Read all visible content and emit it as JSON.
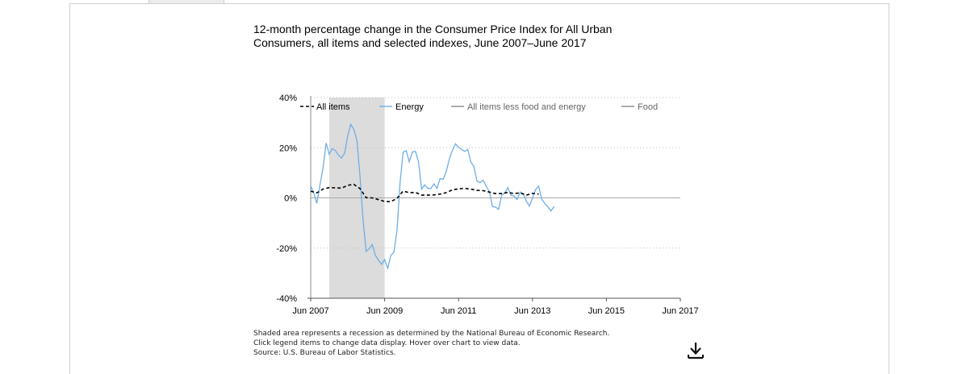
{
  "title": "12-month percentage change in the Consumer Price Index for All Urban Consumers, all items and selected indexes, June 2007–June 2017",
  "notes": {
    "recession": "Shaded area represents a recession as determined by the National Bureau of Economic Research.",
    "instructions": "Click legend items to change data display. Hover over chart to view data.",
    "source": "Source: U.S. Bureau of Labor Statistics."
  },
  "download_icon": "download-icon",
  "chart_data": {
    "type": "line",
    "title": "12-month percentage change in the Consumer Price Index for All Urban Consumers, all items and selected indexes, June 2007–June 2017",
    "xlabel": "",
    "ylabel": "",
    "x_range": [
      "2007-06",
      "2017-06"
    ],
    "x_ticks": [
      "Jun 2007",
      "Jun 2009",
      "Jun 2011",
      "Jun 2013",
      "Jun 2015",
      "Jun 2017"
    ],
    "ylim": [
      -40,
      40
    ],
    "y_ticks": [
      40,
      20,
      0,
      -20,
      -40
    ],
    "y_tick_labels": [
      "40%",
      "20%",
      "0%",
      "-20%",
      "-40%"
    ],
    "grid": "horizontal dotted",
    "legend_position": "top",
    "recession_shading": {
      "start": "2007-12",
      "end": "2009-06"
    },
    "colors": {
      "all_items": "#000000",
      "energy": "#6eaee6",
      "core": "#888888",
      "food": "#888888",
      "recession": "#dcdcdc",
      "grid": "#bdbdbd",
      "axis": "#888888"
    },
    "series": [
      {
        "name": "All items",
        "style": "dashed",
        "visible": true,
        "points": [
          [
            "2007-06",
            2.7
          ],
          [
            "2007-08",
            2.0
          ],
          [
            "2007-10",
            3.5
          ],
          [
            "2007-12",
            4.1
          ],
          [
            "2008-02",
            4.0
          ],
          [
            "2008-04",
            3.9
          ],
          [
            "2008-06",
            5.0
          ],
          [
            "2008-08",
            5.4
          ],
          [
            "2008-10",
            3.7
          ],
          [
            "2008-12",
            0.1
          ],
          [
            "2009-02",
            0.0
          ],
          [
            "2009-04",
            -0.7
          ],
          [
            "2009-06",
            -1.4
          ],
          [
            "2009-08",
            -1.5
          ],
          [
            "2009-10",
            -0.2
          ],
          [
            "2009-12",
            2.7
          ],
          [
            "2010-02",
            2.1
          ],
          [
            "2010-04",
            2.2
          ],
          [
            "2010-06",
            1.1
          ],
          [
            "2010-08",
            1.1
          ],
          [
            "2010-10",
            1.2
          ],
          [
            "2010-12",
            1.5
          ],
          [
            "2011-02",
            2.1
          ],
          [
            "2011-04",
            3.2
          ],
          [
            "2011-06",
            3.6
          ],
          [
            "2011-08",
            3.8
          ],
          [
            "2011-10",
            3.5
          ],
          [
            "2011-12",
            3.0
          ],
          [
            "2012-02",
            2.9
          ],
          [
            "2012-04",
            2.3
          ],
          [
            "2012-06",
            1.7
          ],
          [
            "2012-08",
            1.7
          ],
          [
            "2012-10",
            2.2
          ],
          [
            "2012-12",
            1.7
          ],
          [
            "2013-02",
            2.0
          ],
          [
            "2013-04",
            1.1
          ],
          [
            "2013-06",
            1.8
          ],
          [
            "2013-08",
            1.5
          ]
        ]
      },
      {
        "name": "Energy",
        "style": "solid",
        "visible": true,
        "points": [
          [
            "2007-06",
            4.8
          ],
          [
            "2007-07",
            2.0
          ],
          [
            "2007-08",
            -2.2
          ],
          [
            "2007-09",
            5.0
          ],
          [
            "2007-10",
            12.0
          ],
          [
            "2007-11",
            21.8
          ],
          [
            "2007-12",
            17.4
          ],
          [
            "2008-01",
            19.6
          ],
          [
            "2008-02",
            18.9
          ],
          [
            "2008-03",
            17.0
          ],
          [
            "2008-04",
            15.9
          ],
          [
            "2008-05",
            17.8
          ],
          [
            "2008-06",
            24.7
          ],
          [
            "2008-07",
            29.3
          ],
          [
            "2008-08",
            27.3
          ],
          [
            "2008-09",
            22.8
          ],
          [
            "2008-10",
            8.5
          ],
          [
            "2008-11",
            -9.0
          ],
          [
            "2008-12",
            -21.3
          ],
          [
            "2009-01",
            -20.3
          ],
          [
            "2009-02",
            -18.6
          ],
          [
            "2009-03",
            -22.9
          ],
          [
            "2009-04",
            -24.8
          ],
          [
            "2009-05",
            -26.5
          ],
          [
            "2009-06",
            -24.6
          ],
          [
            "2009-07",
            -28.1
          ],
          [
            "2009-08",
            -23.0
          ],
          [
            "2009-09",
            -21.6
          ],
          [
            "2009-10",
            -13.0
          ],
          [
            "2009-11",
            6.0
          ],
          [
            "2009-12",
            18.2
          ],
          [
            "2010-01",
            18.9
          ],
          [
            "2010-02",
            14.4
          ],
          [
            "2010-03",
            18.3
          ],
          [
            "2010-04",
            18.5
          ],
          [
            "2010-05",
            14.4
          ],
          [
            "2010-06",
            3.5
          ],
          [
            "2010-07",
            5.2
          ],
          [
            "2010-08",
            3.8
          ],
          [
            "2010-09",
            3.8
          ],
          [
            "2010-10",
            5.6
          ],
          [
            "2010-11",
            3.8
          ],
          [
            "2010-12",
            7.7
          ],
          [
            "2011-01",
            7.4
          ],
          [
            "2011-02",
            10.5
          ],
          [
            "2011-03",
            15.5
          ],
          [
            "2011-04",
            19.0
          ],
          [
            "2011-05",
            21.6
          ],
          [
            "2011-06",
            20.1
          ],
          [
            "2011-07",
            19.3
          ],
          [
            "2011-08",
            18.5
          ],
          [
            "2011-09",
            19.3
          ],
          [
            "2011-10",
            14.2
          ],
          [
            "2011-11",
            12.5
          ],
          [
            "2011-12",
            6.6
          ],
          [
            "2012-01",
            6.1
          ],
          [
            "2012-02",
            7.0
          ],
          [
            "2012-03",
            4.6
          ],
          [
            "2012-04",
            2.4
          ],
          [
            "2012-05",
            -3.5
          ],
          [
            "2012-06",
            -3.7
          ],
          [
            "2012-07",
            -4.6
          ],
          [
            "2012-08",
            1.0
          ],
          [
            "2012-09",
            2.0
          ],
          [
            "2012-10",
            4.1
          ],
          [
            "2012-11",
            1.0
          ],
          [
            "2012-12",
            0.8
          ],
          [
            "2013-01",
            -0.6
          ],
          [
            "2013-02",
            2.3
          ],
          [
            "2013-03",
            1.7
          ],
          [
            "2013-04",
            -1.3
          ],
          [
            "2013-05",
            -3.3
          ],
          [
            "2013-06",
            0.0
          ],
          [
            "2013-07",
            3.2
          ],
          [
            "2013-08",
            4.7
          ],
          [
            "2013-09",
            -0.5
          ],
          [
            "2013-10",
            -2.2
          ],
          [
            "2013-11",
            -3.6
          ],
          [
            "2013-12",
            -5.2
          ],
          [
            "2014-01",
            -3.4
          ]
        ]
      },
      {
        "name": "All items less food and energy",
        "style": "solid",
        "visible": false,
        "points": []
      },
      {
        "name": "Food",
        "style": "solid",
        "visible": false,
        "points": []
      }
    ]
  }
}
